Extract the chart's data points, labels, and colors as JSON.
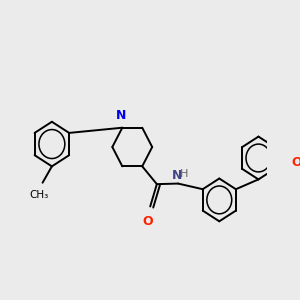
{
  "bg_color": "#ebebeb",
  "bond_color": "#000000",
  "bond_width": 1.4,
  "figsize": [
    3.0,
    3.0
  ],
  "dpi": 100,
  "xlim": [
    0,
    10
  ],
  "ylim": [
    0,
    10
  ]
}
